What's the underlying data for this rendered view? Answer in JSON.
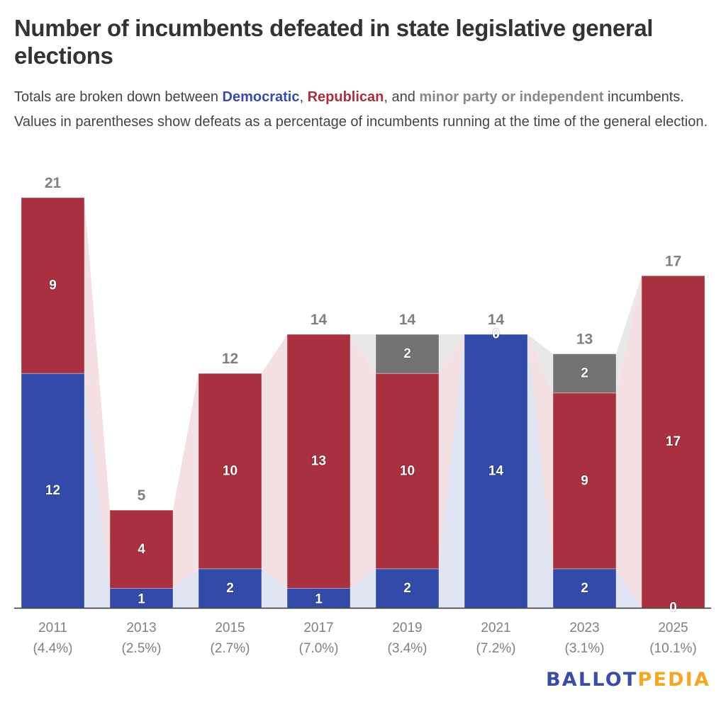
{
  "header": {
    "title": "Number of incumbents defeated in state legislative general elections",
    "subtitle_parts": {
      "p1": "Totals are broken down between ",
      "dem": "Democratic",
      "p2": ", ",
      "rep": "Republican",
      "p3": ", and ",
      "minor": "minor party or independent",
      "p4": " incumbents. Values in parentheses show defeats as a percentage of incumbents running at the time of the general election."
    }
  },
  "logo": {
    "part1": "BALLOT",
    "part2": "PEDIA"
  },
  "colors": {
    "democratic": "#324aa8",
    "republican": "#a8303f",
    "minor": "#737373",
    "democratic_band": "#e1e4f2",
    "republican_band": "#f4dfe2",
    "minor_band": "#e8e8e8",
    "axis": "#333333"
  },
  "chart_data": {
    "type": "bar",
    "stacked": true,
    "title": "Number of incumbents defeated in state legislative general elections",
    "categories": [
      "2011",
      "2013",
      "2015",
      "2017",
      "2019",
      "2021",
      "2023",
      "2025"
    ],
    "category_sublabels": [
      "(4.4%)",
      "(2.5%)",
      "(2.7%)",
      "(7.0%)",
      "(3.4%)",
      "(7.2%)",
      "(3.1%)",
      "(10.1%)"
    ],
    "series": [
      {
        "name": "Democratic",
        "key": "democratic",
        "values": [
          12,
          1,
          2,
          1,
          2,
          14,
          2,
          0
        ],
        "labels": [
          "12",
          "1",
          "2",
          "1",
          "2",
          "14",
          "2",
          "0"
        ]
      },
      {
        "name": "Republican",
        "key": "republican",
        "values": [
          9,
          4,
          10,
          13,
          10,
          0,
          9,
          17
        ],
        "labels": [
          "9",
          "4",
          "10",
          "13",
          "10",
          "0",
          "9",
          "17"
        ]
      },
      {
        "name": "Minor party or independent",
        "key": "minor",
        "values": [
          0,
          0,
          0,
          0,
          2,
          0,
          2,
          0
        ],
        "labels": [
          "",
          "",
          "",
          "",
          "2",
          "",
          "2",
          ""
        ]
      }
    ],
    "totals": [
      21,
      5,
      12,
      14,
      14,
      14,
      13,
      17
    ],
    "xlabel": "",
    "ylabel": "",
    "ylim": [
      0,
      21
    ],
    "grid": false,
    "legend": "in-subtitle"
  }
}
